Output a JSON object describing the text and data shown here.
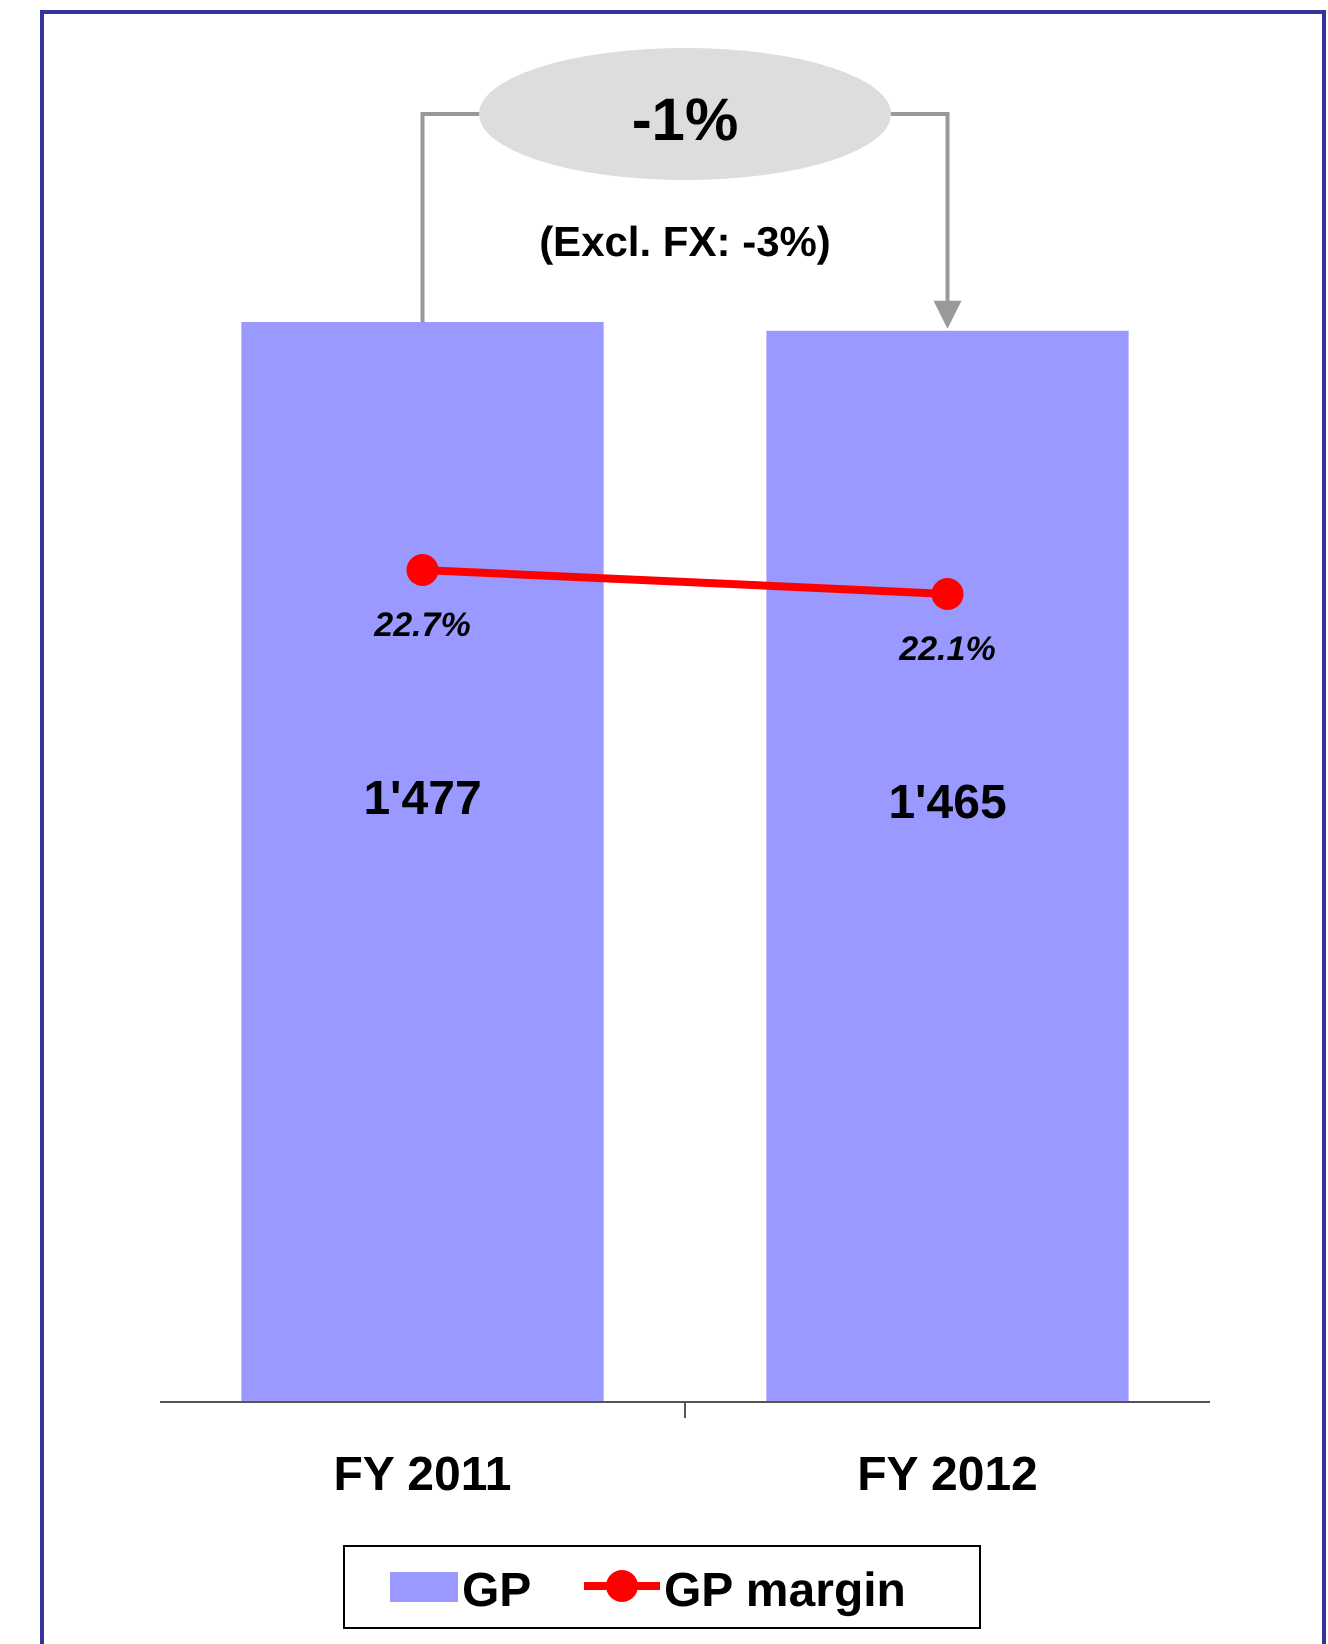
{
  "chart_data": {
    "type": "bar",
    "categories": [
      "FY 2011",
      "FY 2012"
    ],
    "series": [
      {
        "name": "GP",
        "color": "#9999ff",
        "values": [
          1477,
          1465
        ],
        "value_labels": [
          "1'477",
          "1'465"
        ]
      },
      {
        "name": "GP margin",
        "type": "line",
        "axis": "y2",
        "color": "#ff0000",
        "values": [
          22.7,
          22.1
        ],
        "value_labels": [
          "22.7%",
          "22.1%"
        ]
      }
    ],
    "tick_labels": "x",
    "marker": "circle",
    "line_style": "solid",
    "legend": "bottom",
    "annotations": [
      "-1%",
      "(Excl. FX: -3%)"
    ]
  }
}
